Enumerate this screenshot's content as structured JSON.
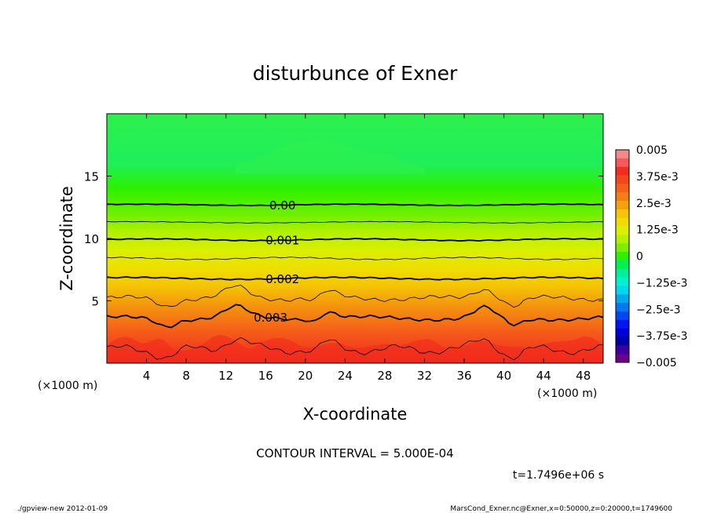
{
  "chart_data": {
    "type": "contour",
    "title": "disturbunce of Exner",
    "xlabel": "X-coordinate",
    "ylabel": "Z-coordinate",
    "x_unit_left": "(×1000 m)",
    "x_unit_right": "(×1000 m)",
    "xlim": [
      0,
      50
    ],
    "ylim": [
      0,
      20
    ],
    "x_ticks": [
      4,
      8,
      12,
      16,
      20,
      24,
      28,
      32,
      36,
      40,
      44,
      48
    ],
    "y_ticks": [
      5,
      10,
      15
    ],
    "colorbar": {
      "labels": [
        "0.005",
        "3.75e-3",
        "2.5e-3",
        "1.25e-3",
        "0",
        "−1.25e-3",
        "−2.5e-3",
        "−3.75e-3",
        "−0.005"
      ],
      "levels": [
        0.005,
        0.00375,
        0.0025,
        0.00125,
        0,
        -0.00125,
        -0.0025,
        -0.00375,
        -0.005
      ],
      "colors_top_to_bottom": [
        "#f28a8a",
        "#f55a5a",
        "#f22d24",
        "#f2461d",
        "#f5601a",
        "#f57f14",
        "#f5a00c",
        "#f5c506",
        "#f0dd00",
        "#dcef00",
        "#b4f000",
        "#7af000",
        "#2ef000",
        "#00f050",
        "#00f09a",
        "#00f0d0",
        "#00d8f0",
        "#00a8f0",
        "#0078f0",
        "#0048f0",
        "#0018f0",
        "#0000d8",
        "#0000a8",
        "#3c00a0",
        "#6a0090"
      ]
    },
    "contour_levels_labeled": [
      {
        "label": "0.00",
        "value": 0.0,
        "z": 12.7
      },
      {
        "label": "0.001",
        "value": 0.001,
        "z": 9.9
      },
      {
        "label": "0.002",
        "value": 0.002,
        "z": 6.8
      },
      {
        "label": "0.003",
        "value": 0.003,
        "z": 3.7
      }
    ],
    "contour_interval_text": "CONTOUR INTERVAL = 5.000E-04",
    "time_text": "t=1.7496e+06 s"
  },
  "footer": {
    "left": "./gpview-new  2012-01-09",
    "right": "MarsCond_Exner.nc@Exner,x=0:50000,z=0:20000,t=1749600"
  }
}
